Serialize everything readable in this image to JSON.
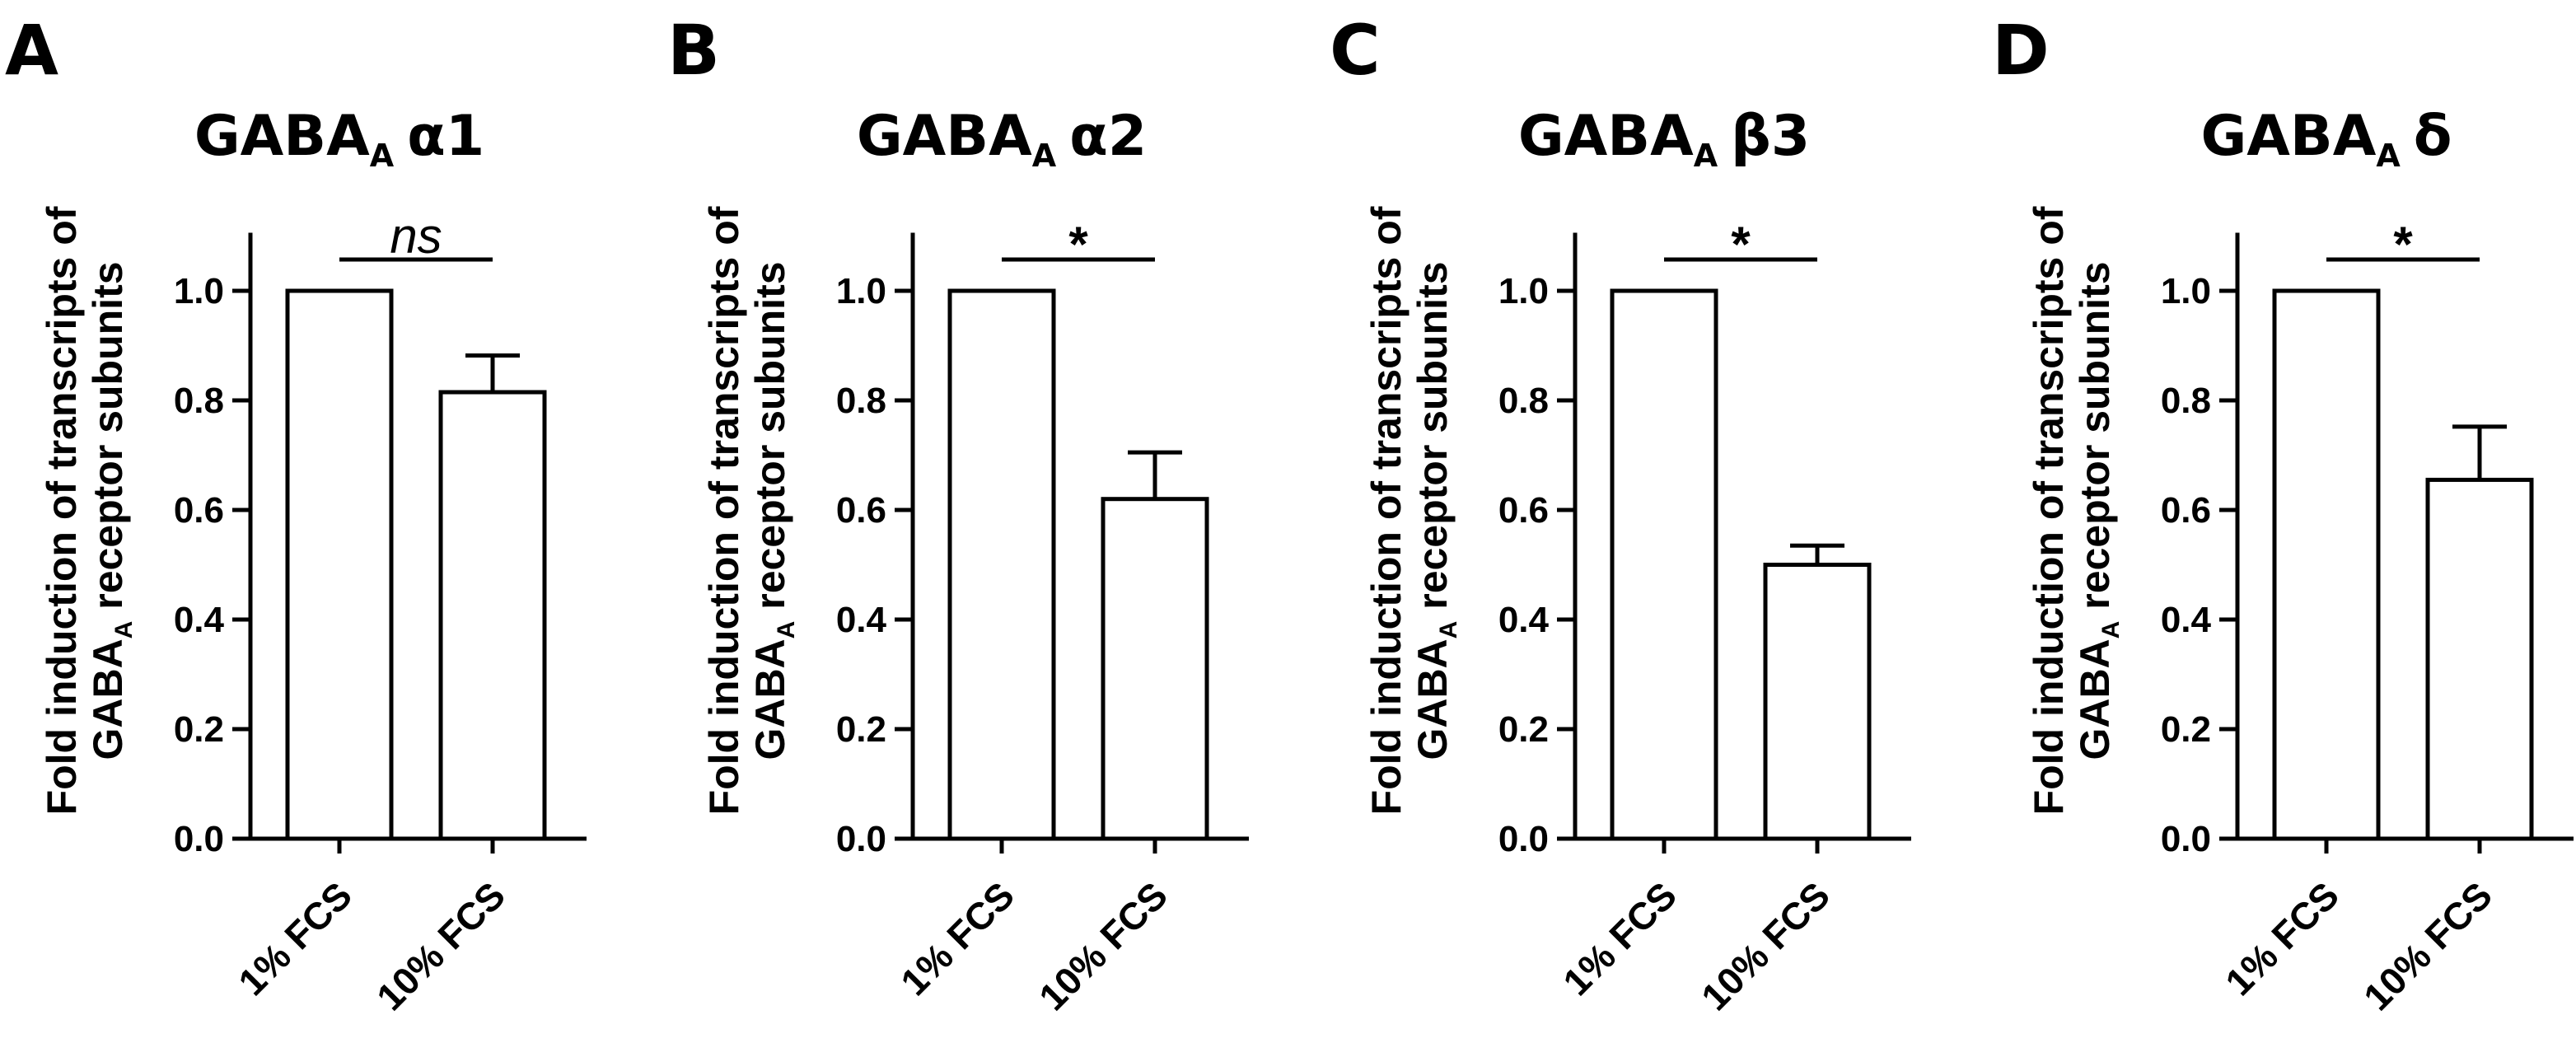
{
  "chart_data": [
    {
      "panel": "A",
      "type": "bar",
      "title": {
        "main": "GABA",
        "sub": "A",
        "greek": "α1"
      },
      "ylabel": {
        "line1": "Fold induction of transcripts of",
        "line2_main": "GABA",
        "line2_sub": "A",
        "line2_rest": " receptor subunits"
      },
      "categories": [
        "1% FCS",
        "10% FCS"
      ],
      "values": [
        1.0,
        0.815
      ],
      "errors": [
        0,
        0.067
      ],
      "ylim": [
        0,
        1.1
      ],
      "yticks": [
        "0.0",
        "0.2",
        "0.4",
        "0.6",
        "0.8",
        "1.0"
      ],
      "significance": "ns"
    },
    {
      "panel": "B",
      "type": "bar",
      "title": {
        "main": "GABA",
        "sub": "A",
        "greek": "α2"
      },
      "ylabel": {
        "line1": "Fold induction of transcripts of",
        "line2_main": "GABA",
        "line2_sub": "A",
        "line2_rest": " receptor subunits"
      },
      "categories": [
        "1% FCS",
        "10% FCS"
      ],
      "values": [
        1.0,
        0.62
      ],
      "errors": [
        0,
        0.085
      ],
      "ylim": [
        0,
        1.1
      ],
      "yticks": [
        "0.0",
        "0.2",
        "0.4",
        "0.6",
        "0.8",
        "1.0"
      ],
      "significance": "*"
    },
    {
      "panel": "C",
      "type": "bar",
      "title": {
        "main": "GABA",
        "sub": "A",
        "greek": "β3"
      },
      "ylabel": {
        "line1": "Fold induction of transcripts of",
        "line2_main": "GABA",
        "line2_sub": "A",
        "line2_rest": " receptor subunits"
      },
      "categories": [
        "1% FCS",
        "10% FCS"
      ],
      "values": [
        1.0,
        0.5
      ],
      "errors": [
        0,
        0.035
      ],
      "ylim": [
        0,
        1.1
      ],
      "yticks": [
        "0.0",
        "0.2",
        "0.4",
        "0.6",
        "0.8",
        "1.0"
      ],
      "significance": "*"
    },
    {
      "panel": "D",
      "type": "bar",
      "title": {
        "main": "GABA",
        "sub": "A",
        "greek": "δ"
      },
      "ylabel": {
        "line1": "Fold induction of transcripts of",
        "line2_main": "GABA",
        "line2_sub": "A",
        "line2_rest": " receptor subunits"
      },
      "categories": [
        "1% FCS",
        "10% FCS"
      ],
      "values": [
        1.0,
        0.655
      ],
      "errors": [
        0,
        0.097
      ],
      "ylim": [
        0,
        1.1
      ],
      "yticks": [
        "0.0",
        "0.2",
        "0.4",
        "0.6",
        "0.8",
        "1.0"
      ],
      "significance": "*"
    }
  ]
}
